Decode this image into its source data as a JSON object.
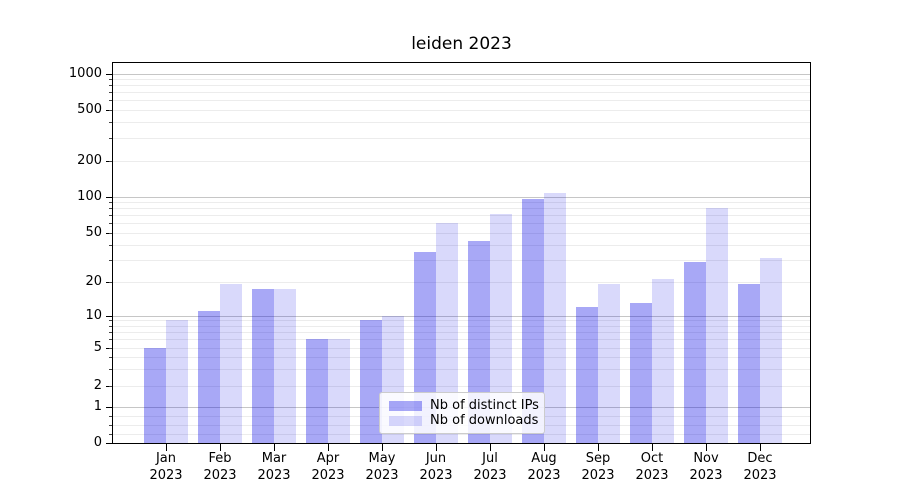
{
  "chart_data": {
    "type": "bar",
    "title": "leiden 2023",
    "categories": [
      "Jan",
      "Feb",
      "Mar",
      "Apr",
      "May",
      "Jun",
      "Jul",
      "Aug",
      "Sep",
      "Oct",
      "Nov",
      "Dec"
    ],
    "category_year_label": "2023",
    "series": [
      {
        "name": "Nb of distinct IPs",
        "color": "rgba(0,0,230,0.34)",
        "values": [
          5,
          11,
          17,
          6,
          9,
          35,
          43,
          95,
          12,
          13,
          29,
          19
        ]
      },
      {
        "name": "Nb of downloads",
        "color": "rgba(0,0,230,0.15)",
        "values": [
          9,
          19,
          17,
          6,
          10,
          60,
          72,
          107,
          19,
          21,
          80,
          31
        ]
      }
    ],
    "y_axis": {
      "scale": "log-above-1-linear-below",
      "tick_values": [
        0,
        1,
        2,
        5,
        10,
        20,
        50,
        100,
        200,
        500,
        1000
      ],
      "tick_labels": [
        "0",
        "1",
        "2",
        "5",
        "10",
        "20",
        "50",
        "100",
        "200",
        "500",
        "1000"
      ]
    },
    "grid": {
      "major_values": [
        1,
        10,
        100,
        1000
      ],
      "minor_values": [
        0.25,
        0.5,
        0.75,
        3,
        4,
        6,
        7,
        8,
        9,
        2,
        5,
        20,
        30,
        40,
        50,
        60,
        70,
        80,
        90,
        200,
        300,
        400,
        500,
        600,
        700,
        800,
        900
      ]
    },
    "legend": {
      "position": "lower center",
      "entries": [
        "Nb of distinct IPs",
        "Nb of downloads"
      ]
    },
    "colors": {
      "bar_distinct_ips": "#a9a9f2",
      "bar_downloads": "#dbdbf9",
      "grid_major": "#c6c6c6",
      "grid_minor": "#ececec",
      "spine": "#000000"
    }
  }
}
